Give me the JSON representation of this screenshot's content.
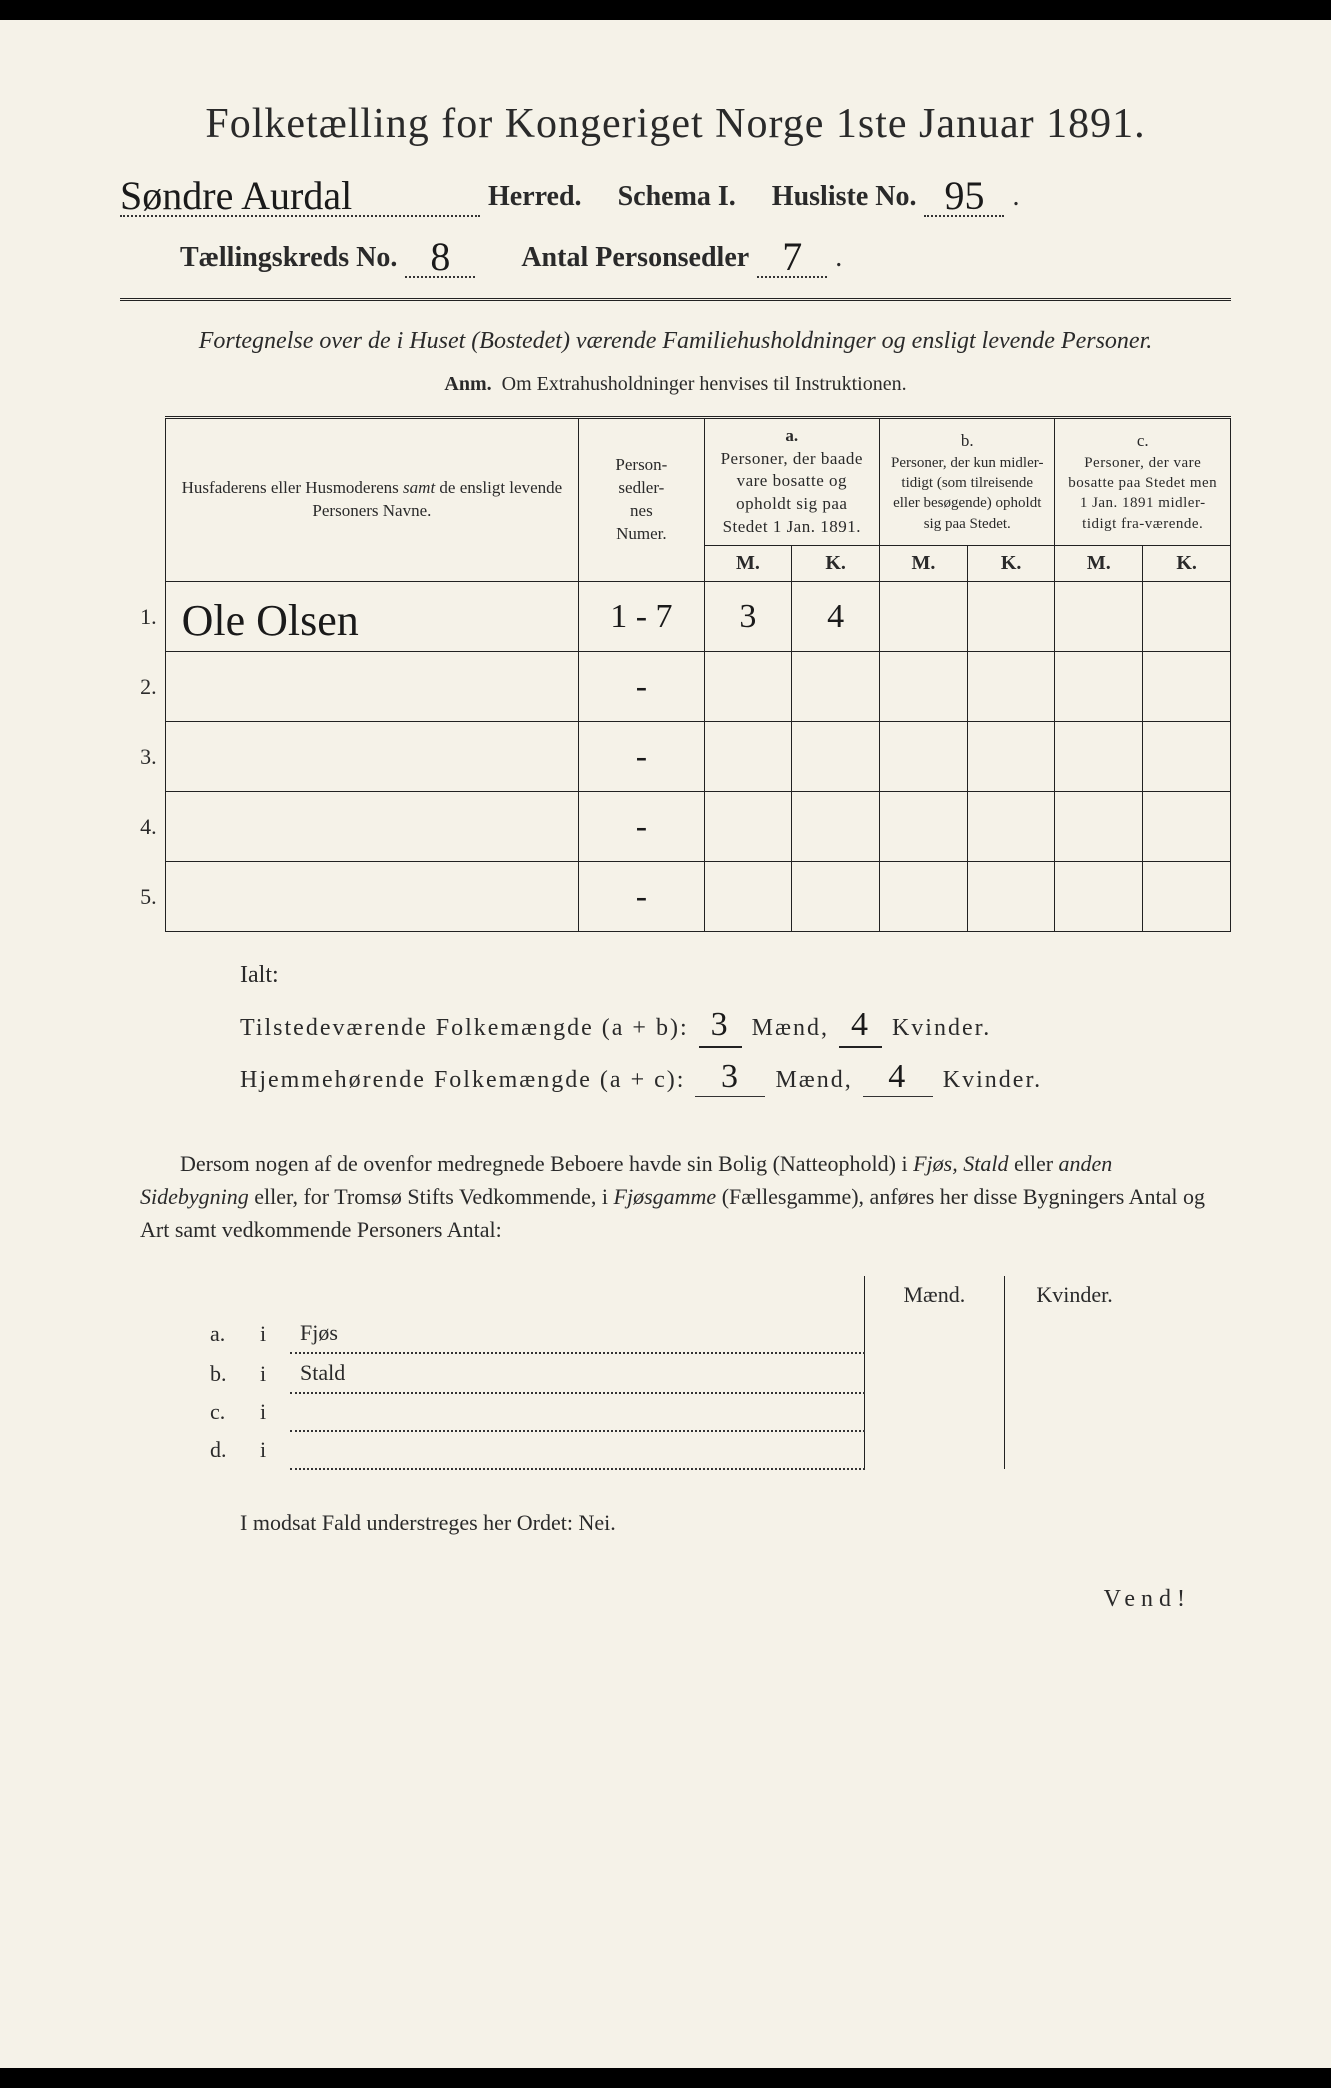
{
  "title": "Folketælling for Kongeriget Norge 1ste Januar 1891.",
  "header": {
    "herred_value": "Søndre Aurdal",
    "herred_label": "Herred.",
    "schema_label": "Schema I.",
    "husliste_label": "Husliste No.",
    "husliste_value": "95",
    "kreds_label": "Tællingskreds No.",
    "kreds_value": "8",
    "personsedler_label": "Antal Personsedler",
    "personsedler_value": "7"
  },
  "subtitle": "Fortegnelse over de i Huset (Bostedet) værende Familiehusholdninger og ensligt levende Personer.",
  "anm": {
    "label": "Anm.",
    "text": "Om Extrahusholdninger henvises til Instruktionen."
  },
  "table": {
    "columns": {
      "names": "Husfaderens eller Husmoderens samt de ensligt levende Personers Navne.",
      "numer": "Person-\nsedler-\nnes\nNumer.",
      "a_label": "a.",
      "a_text": "Personer, der baade vare bosatte og opholdt sig paa Stedet 1 Jan. 1891.",
      "b_label": "b.",
      "b_text": "Personer, der kun midler-tidigt (som tilreisende eller besøgende) opholdt sig paa Stedet.",
      "c_label": "c.",
      "c_text": "Personer, der vare bosatte paa Stedet men 1 Jan. 1891 midler-tidigt fra-værende.",
      "M": "M.",
      "K": "K."
    },
    "rows": [
      {
        "n": "1.",
        "name": "Ole Olsen",
        "numer": "1 - 7",
        "aM": "3",
        "aK": "4",
        "bM": "",
        "bK": "",
        "cM": "",
        "cK": ""
      },
      {
        "n": "2.",
        "name": "",
        "numer": "-",
        "aM": "",
        "aK": "",
        "bM": "",
        "bK": "",
        "cM": "",
        "cK": ""
      },
      {
        "n": "3.",
        "name": "",
        "numer": "-",
        "aM": "",
        "aK": "",
        "bM": "",
        "bK": "",
        "cM": "",
        "cK": ""
      },
      {
        "n": "4.",
        "name": "",
        "numer": "-",
        "aM": "",
        "aK": "",
        "bM": "",
        "bK": "",
        "cM": "",
        "cK": ""
      },
      {
        "n": "5.",
        "name": "",
        "numer": "-",
        "aM": "",
        "aK": "",
        "bM": "",
        "bK": "",
        "cM": "",
        "cK": ""
      }
    ]
  },
  "totals": {
    "ialt": "Ialt:",
    "line1_label": "Tilstedeværende Folkemængde (a + b):",
    "line2_label": "Hjemmehørende Folkemængde (a + c):",
    "maend": "Mænd,",
    "kvinder": "Kvinder.",
    "vals": {
      "tb_m": "3",
      "tb_k": "4",
      "hc_m": "3",
      "hc_k": "4"
    }
  },
  "paragraph": "Dersom nogen af de ovenfor medregnede Beboere havde sin Bolig (Natteophold) i Fjøs, Stald eller anden Sidebygning eller, for Tromsø Stifts Vedkommende, i Fjøsgamme (Fællesgamme), anføres her disse Bygningers Antal og Art samt vedkommende Personers Antal:",
  "lodging": {
    "head_m": "Mænd.",
    "head_k": "Kvinder.",
    "rows": [
      {
        "key": "a.",
        "i": "i",
        "label": "Fjøs"
      },
      {
        "key": "b.",
        "i": "i",
        "label": "Stald"
      },
      {
        "key": "c.",
        "i": "i",
        "label": ""
      },
      {
        "key": "d.",
        "i": "i",
        "label": ""
      }
    ]
  },
  "nei_line": "I modsat Fald understreges her Ordet: Nei.",
  "vend": "Vend!"
}
